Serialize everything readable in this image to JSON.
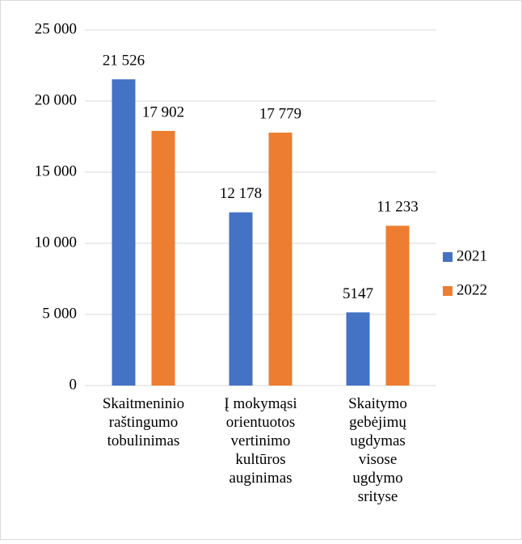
{
  "chart_data": {
    "type": "bar",
    "categories": [
      "Skaitmeninio\nraštingumo\ntobulinimas",
      "Į mokymąsi\norientuotos\nvertinimo\nkultūros\nauginimas",
      "Skaitymo\ngebėjimų\nugdymas\nvisose\nugdymo\nsrityse"
    ],
    "series": [
      {
        "name": "2021",
        "color": "#4472c4",
        "values": [
          21526,
          12178,
          5147
        ],
        "value_labels": [
          "21 526",
          "12 178",
          "5147"
        ]
      },
      {
        "name": "2022",
        "color": "#ed7d31",
        "values": [
          17902,
          17779,
          11233
        ],
        "value_labels": [
          "17 902",
          "17 779",
          "11 233"
        ]
      }
    ],
    "ylim": [
      0,
      25000
    ],
    "yticks": [
      {
        "value": 0,
        "label": "0"
      },
      {
        "value": 5000,
        "label": "5 000"
      },
      {
        "value": 10000,
        "label": "10 000"
      },
      {
        "value": 15000,
        "label": "15 000"
      },
      {
        "value": 20000,
        "label": "20 000"
      },
      {
        "value": 25000,
        "label": "25 000"
      }
    ],
    "grid": true,
    "legend": "right"
  }
}
